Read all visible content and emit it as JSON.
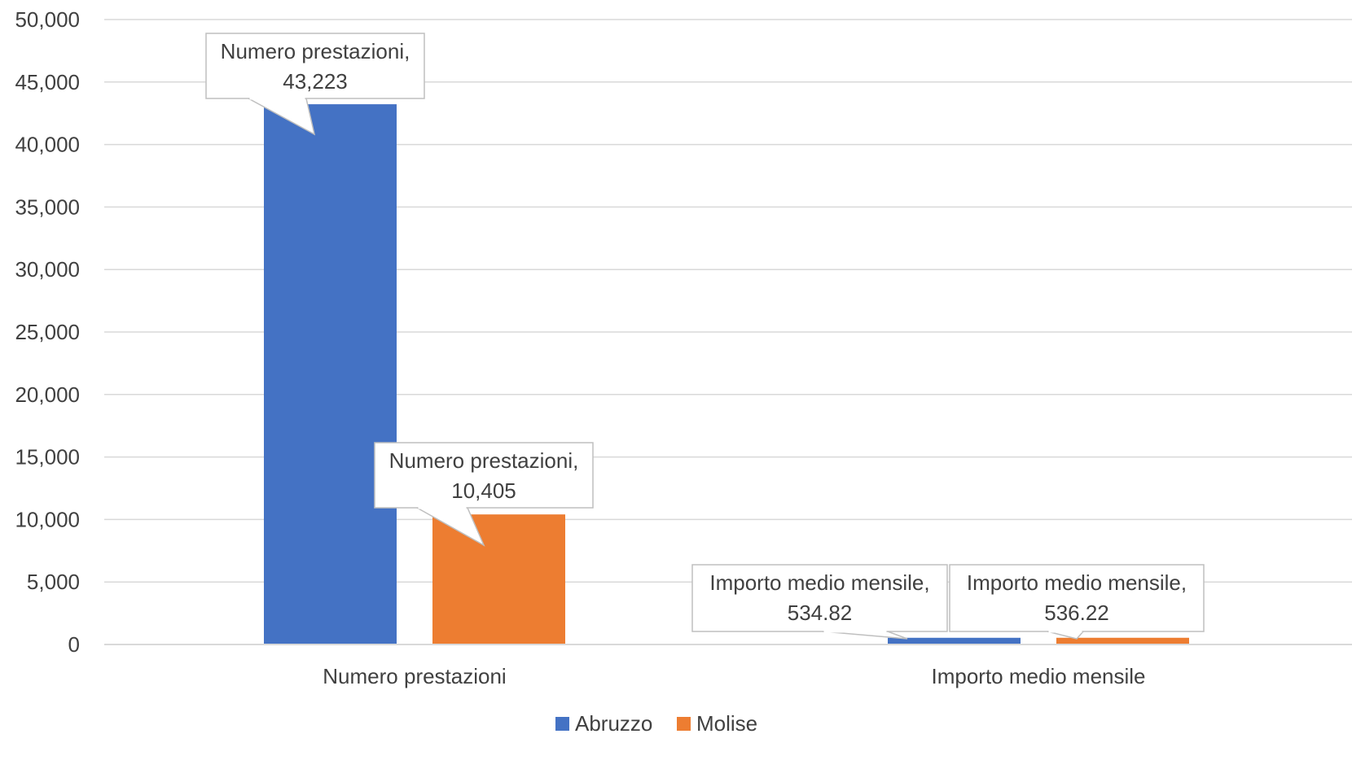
{
  "chart_data": {
    "type": "bar",
    "categories": [
      "Numero prestazioni",
      "Importo medio mensile"
    ],
    "series": [
      {
        "name": "Abruzzo",
        "color": "#4472C4",
        "values": [
          43223,
          534.82
        ],
        "data_labels": [
          [
            "Numero prestazioni,",
            "43,223"
          ],
          [
            "Importo medio mensile,",
            "534.82"
          ]
        ]
      },
      {
        "name": "Molise",
        "color": "#ED7D31",
        "values": [
          10405,
          536.22
        ],
        "data_labels": [
          [
            "Numero prestazioni,",
            "10,405"
          ],
          [
            "Importo medio mensile,",
            "536.22"
          ]
        ]
      }
    ],
    "ylim": [
      0,
      50000
    ],
    "yticks": [
      0,
      5000,
      10000,
      15000,
      20000,
      25000,
      30000,
      35000,
      40000,
      45000,
      50000
    ],
    "ytick_labels": [
      "0",
      "5,000",
      "10,000",
      "15,000",
      "20,000",
      "25,000",
      "30,000",
      "35,000",
      "40,000",
      "45,000",
      "50,000"
    ],
    "grid": true,
    "legend_position": "bottom",
    "title": "",
    "xlabel": "",
    "ylabel": ""
  }
}
